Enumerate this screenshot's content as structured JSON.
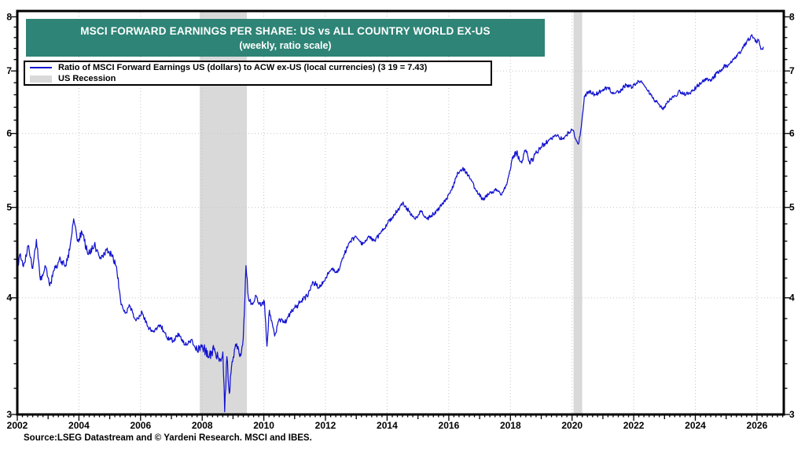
{
  "header": {
    "title": "MSCI FORWARD EARNINGS PER SHARE: US vs ALL COUNTRY WORLD EX-US",
    "subtitle": "(weekly, ratio scale)",
    "bg_color": "#2e8476"
  },
  "legend": {
    "series_label": "Ratio of MSCI Forward Earnings US (dollars) to ACW ex-US (local currencies) (3 19 = 7.43)",
    "recession_label": "US Recession"
  },
  "source": "Source:LSEG Datastream and © Yardeni Research. MSCI and IBES.",
  "chart_data": {
    "type": "line",
    "title": "MSCI FORWARD EARNINGS PER SHARE: US vs ALL COUNTRY WORLD EX-US (weekly, ratio scale)",
    "y_scale": "log",
    "grid": "dotted",
    "legend_position": "top-left",
    "x_range": [
      2002,
      2026.87
    ],
    "y_range": [
      3,
      8
    ],
    "x_ticks": [
      2002,
      2004,
      2006,
      2008,
      2010,
      2012,
      2014,
      2016,
      2018,
      2020,
      2022,
      2024,
      2026
    ],
    "y_ticks": [
      3,
      4,
      5,
      6,
      7,
      8
    ],
    "grid_color": "#c4c4c4",
    "recession_color": "#d9d9d9",
    "recession_bands": [
      [
        2007.92,
        2009.45
      ],
      [
        2020.05,
        2020.33
      ]
    ],
    "last_point": {
      "date_label": "3 19",
      "value": 7.43
    },
    "series": [
      {
        "name": "Ratio of MSCI Forward Earnings US (dollars) to ACW ex-US (local currencies)",
        "color": "#1212d0",
        "points": [
          [
            2002.0,
            4.25
          ],
          [
            2002.08,
            4.45
          ],
          [
            2002.2,
            4.32
          ],
          [
            2002.35,
            4.55
          ],
          [
            2002.5,
            4.3
          ],
          [
            2002.62,
            4.62
          ],
          [
            2002.75,
            4.18
          ],
          [
            2002.9,
            4.33
          ],
          [
            2003.05,
            4.12
          ],
          [
            2003.2,
            4.28
          ],
          [
            2003.4,
            4.4
          ],
          [
            2003.55,
            4.32
          ],
          [
            2003.7,
            4.5
          ],
          [
            2003.83,
            4.86
          ],
          [
            2003.95,
            4.6
          ],
          [
            2004.1,
            4.7
          ],
          [
            2004.3,
            4.45
          ],
          [
            2004.5,
            4.56
          ],
          [
            2004.7,
            4.42
          ],
          [
            2004.9,
            4.5
          ],
          [
            2005.05,
            4.45
          ],
          [
            2005.22,
            4.32
          ],
          [
            2005.35,
            3.98
          ],
          [
            2005.5,
            3.85
          ],
          [
            2005.65,
            3.92
          ],
          [
            2005.85,
            3.78
          ],
          [
            2006.05,
            3.86
          ],
          [
            2006.25,
            3.72
          ],
          [
            2006.45,
            3.68
          ],
          [
            2006.65,
            3.74
          ],
          [
            2006.85,
            3.63
          ],
          [
            2007.05,
            3.6
          ],
          [
            2007.25,
            3.66
          ],
          [
            2007.45,
            3.56
          ],
          [
            2007.65,
            3.61
          ],
          [
            2007.85,
            3.5
          ],
          [
            2008.0,
            3.56
          ],
          [
            2008.2,
            3.46
          ],
          [
            2008.4,
            3.53
          ],
          [
            2008.55,
            3.42
          ],
          [
            2008.67,
            3.5
          ],
          [
            2008.73,
            3.02
          ],
          [
            2008.8,
            3.46
          ],
          [
            2008.88,
            3.16
          ],
          [
            2008.97,
            3.42
          ],
          [
            2009.1,
            3.55
          ],
          [
            2009.22,
            3.46
          ],
          [
            2009.33,
            3.62
          ],
          [
            2009.42,
            4.33
          ],
          [
            2009.5,
            4.0
          ],
          [
            2009.62,
            3.95
          ],
          [
            2009.75,
            4.02
          ],
          [
            2009.9,
            3.92
          ],
          [
            2010.02,
            3.96
          ],
          [
            2010.1,
            3.55
          ],
          [
            2010.18,
            3.88
          ],
          [
            2010.35,
            3.64
          ],
          [
            2010.5,
            3.8
          ],
          [
            2010.68,
            3.76
          ],
          [
            2010.85,
            3.85
          ],
          [
            2011.0,
            3.9
          ],
          [
            2011.2,
            3.96
          ],
          [
            2011.4,
            4.02
          ],
          [
            2011.6,
            4.16
          ],
          [
            2011.8,
            4.1
          ],
          [
            2012.0,
            4.2
          ],
          [
            2012.2,
            4.3
          ],
          [
            2012.4,
            4.26
          ],
          [
            2012.6,
            4.45
          ],
          [
            2012.8,
            4.6
          ],
          [
            2013.0,
            4.65
          ],
          [
            2013.2,
            4.56
          ],
          [
            2013.4,
            4.66
          ],
          [
            2013.6,
            4.6
          ],
          [
            2013.8,
            4.7
          ],
          [
            2014.0,
            4.8
          ],
          [
            2014.25,
            4.92
          ],
          [
            2014.5,
            5.05
          ],
          [
            2014.7,
            4.96
          ],
          [
            2014.9,
            4.86
          ],
          [
            2015.1,
            4.96
          ],
          [
            2015.3,
            4.86
          ],
          [
            2015.5,
            4.92
          ],
          [
            2015.7,
            5.0
          ],
          [
            2015.9,
            5.1
          ],
          [
            2016.1,
            5.22
          ],
          [
            2016.3,
            5.45
          ],
          [
            2016.5,
            5.5
          ],
          [
            2016.7,
            5.36
          ],
          [
            2016.9,
            5.2
          ],
          [
            2017.1,
            5.1
          ],
          [
            2017.3,
            5.16
          ],
          [
            2017.5,
            5.22
          ],
          [
            2017.7,
            5.16
          ],
          [
            2017.9,
            5.32
          ],
          [
            2018.05,
            5.62
          ],
          [
            2018.2,
            5.72
          ],
          [
            2018.35,
            5.6
          ],
          [
            2018.5,
            5.76
          ],
          [
            2018.65,
            5.58
          ],
          [
            2018.8,
            5.7
          ],
          [
            2018.95,
            5.78
          ],
          [
            2019.1,
            5.85
          ],
          [
            2019.3,
            5.92
          ],
          [
            2019.5,
            5.96
          ],
          [
            2019.7,
            5.92
          ],
          [
            2019.9,
            6.02
          ],
          [
            2020.02,
            6.05
          ],
          [
            2020.12,
            5.92
          ],
          [
            2020.22,
            5.86
          ],
          [
            2020.3,
            6.1
          ],
          [
            2020.4,
            6.58
          ],
          [
            2020.55,
            6.66
          ],
          [
            2020.75,
            6.6
          ],
          [
            2020.95,
            6.67
          ],
          [
            2021.15,
            6.72
          ],
          [
            2021.35,
            6.62
          ],
          [
            2021.55,
            6.66
          ],
          [
            2021.75,
            6.76
          ],
          [
            2021.95,
            6.72
          ],
          [
            2022.1,
            6.8
          ],
          [
            2022.25,
            6.83
          ],
          [
            2022.4,
            6.72
          ],
          [
            2022.6,
            6.56
          ],
          [
            2022.8,
            6.46
          ],
          [
            2022.95,
            6.36
          ],
          [
            2023.1,
            6.5
          ],
          [
            2023.3,
            6.56
          ],
          [
            2023.5,
            6.66
          ],
          [
            2023.7,
            6.6
          ],
          [
            2023.9,
            6.66
          ],
          [
            2024.1,
            6.76
          ],
          [
            2024.3,
            6.86
          ],
          [
            2024.5,
            6.82
          ],
          [
            2024.7,
            6.96
          ],
          [
            2024.9,
            7.06
          ],
          [
            2025.1,
            7.12
          ],
          [
            2025.3,
            7.22
          ],
          [
            2025.5,
            7.36
          ],
          [
            2025.7,
            7.56
          ],
          [
            2025.85,
            7.63
          ],
          [
            2025.95,
            7.52
          ],
          [
            2026.05,
            7.56
          ],
          [
            2026.13,
            7.38
          ],
          [
            2026.21,
            7.43
          ]
        ]
      }
    ]
  }
}
